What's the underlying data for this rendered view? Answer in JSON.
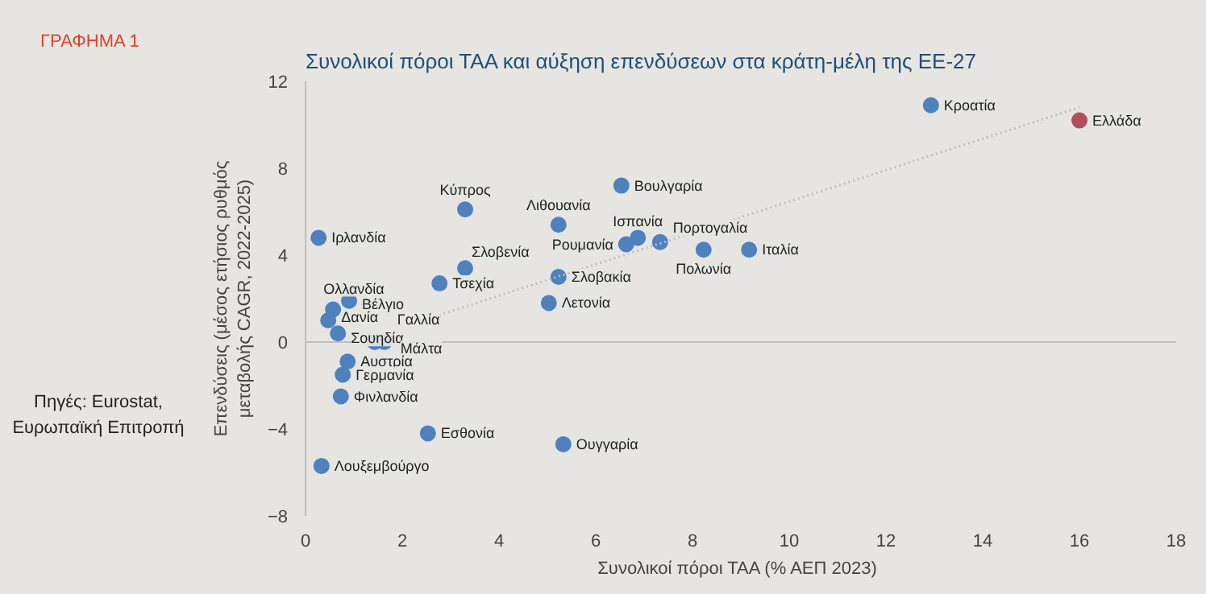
{
  "chart_data": {
    "type": "scatter",
    "title": "Συνολικοί πόροι ΤΑΑ και αύξηση επενδύσεων στα κράτη-μέλη της ΕΕ-27",
    "xlabel": "Συνολικοί  πόροι ΤΑΑ (% ΑΕΠ 2023)",
    "ylabel": "Επενδύσεις (μέσος ετήσιος ρυθμός\nμεταβολής CAGR, 2022-2025)",
    "xlim": [
      0,
      18
    ],
    "xticks": [
      0,
      2,
      4,
      6,
      8,
      10,
      12,
      14,
      16,
      18
    ],
    "ylim": [
      -8,
      12
    ],
    "yticks": [
      -8,
      -4,
      0,
      4,
      8,
      12
    ],
    "marker": "circle",
    "ref_lines": [
      {
        "axis": "y",
        "value": 0,
        "label": null,
        "color": "#bfbfbf"
      }
    ],
    "series": [
      {
        "type": "scatter",
        "color": "#4f81bd",
        "x": [
          12.93,
          6.53,
          3.3,
          5.23,
          0.27,
          6.87,
          6.63,
          8.23,
          7.33,
          9.17,
          3.3,
          5.23,
          2.77,
          5.03,
          0.9,
          0.57,
          0.47,
          0.67,
          1.43,
          1.63,
          0.87,
          0.77,
          0.73,
          2.53,
          5.33,
          0.33
        ],
        "values": [
          10.9,
          7.2,
          6.1,
          5.4,
          4.8,
          4.8,
          4.5,
          4.25,
          4.6,
          4.25,
          3.4,
          3.0,
          2.7,
          1.8,
          1.9,
          1.5,
          1.0,
          0.4,
          0.0,
          0.0,
          -0.9,
          -1.5,
          -2.5,
          -4.2,
          -4.7,
          -5.7
        ]
      },
      {
        "type": "scatter",
        "color": "#b0505e",
        "x": [
          16.0
        ],
        "values": [
          10.2
        ]
      },
      {
        "type": "line",
        "color": "#c0c0c0",
        "line_style": "dotted",
        "marker": "none",
        "x": [
          2,
          16
        ],
        "values": [
          0.69,
          10.8
        ]
      }
    ],
    "annotations": [
      "ΓΡΑΦΗΜΑ 1",
      "Πηγές: Eurostat, Ευρωπαϊκή Επιτροπή",
      {
        "text": "Κροατία",
        "x": 12.93,
        "y": 10.9
      },
      {
        "text": "Ελλάδα",
        "x": 16.0,
        "y": 10.2
      },
      {
        "text": "Βουλγαρία",
        "x": 6.53,
        "y": 7.2
      },
      {
        "text": "Κύπρος",
        "x": 3.3,
        "y": 6.1
      },
      {
        "text": "Λιθουανία",
        "x": 5.23,
        "y": 5.4
      },
      {
        "text": "Ιρλανδία",
        "x": 0.27,
        "y": 4.8
      },
      {
        "text": "Ισπανία",
        "x": 6.87,
        "y": 4.8
      },
      {
        "text": "Ρουμανία",
        "x": 6.63,
        "y": 4.5
      },
      {
        "text": "Πολωνία",
        "x": 8.23,
        "y": 4.25
      },
      {
        "text": "Πορτογαλία",
        "x": 7.33,
        "y": 4.6
      },
      {
        "text": "Ιταλία",
        "x": 9.17,
        "y": 4.25
      },
      {
        "text": "Σλοβενία",
        "x": 3.3,
        "y": 3.4
      },
      {
        "text": "Σλοβακία",
        "x": 5.23,
        "y": 3.0
      },
      {
        "text": "Τσεχία",
        "x": 2.77,
        "y": 2.7
      },
      {
        "text": "Λετονία",
        "x": 5.03,
        "y": 1.8
      },
      {
        "text": "Βέλγιο",
        "x": 0.9,
        "y": 1.9
      },
      {
        "text": "Ολλανδία",
        "x": 0.57,
        "y": 1.5
      },
      {
        "text": "Δανία",
        "x": 0.47,
        "y": 1.0
      },
      {
        "text": "Σουηδία",
        "x": 0.67,
        "y": 0.4
      },
      {
        "text": "Γαλλία",
        "x": 1.43,
        "y": 0.0
      },
      {
        "text": "Μάλτα",
        "x": 1.63,
        "y": 0.0
      },
      {
        "text": "Αυστρία",
        "x": 0.87,
        "y": -0.9
      },
      {
        "text": "Γερμανία",
        "x": 0.77,
        "y": -1.5
      },
      {
        "text": "Φινλανδία",
        "x": 0.73,
        "y": -2.5
      },
      {
        "text": "Εσθονία",
        "x": 2.53,
        "y": -4.2
      },
      {
        "text": "Ουγγαρία",
        "x": 5.33,
        "y": -4.7
      },
      {
        "text": "Λουξεμβούργο",
        "x": 0.33,
        "y": -5.7
      }
    ]
  }
}
